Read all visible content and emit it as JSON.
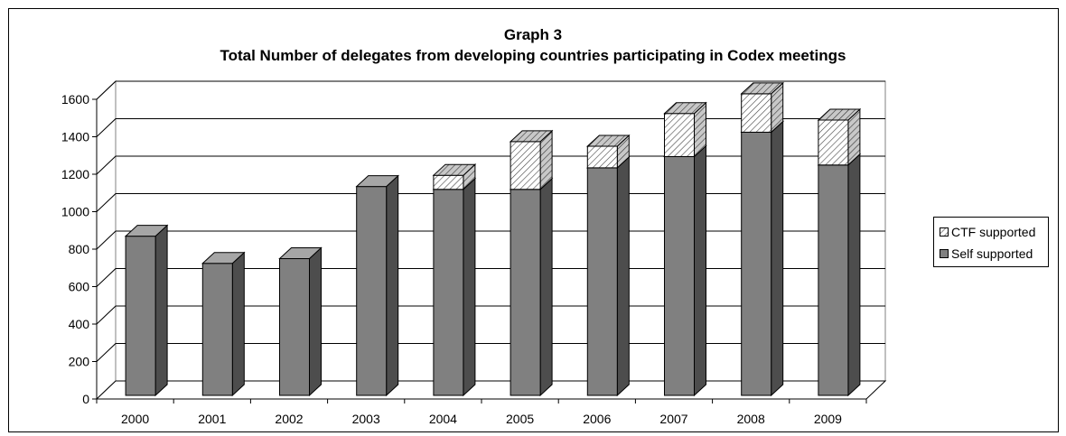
{
  "chart_data": {
    "type": "bar",
    "stacked": true,
    "three_d": true,
    "title": "Graph 3",
    "subtitle": "Total Number of delegates from developing countries participating in Codex meetings",
    "xlabel": "",
    "ylabel": "",
    "categories": [
      "2000",
      "2001",
      "2002",
      "2003",
      "2004",
      "2005",
      "2006",
      "2007",
      "2008",
      "2009"
    ],
    "series": [
      {
        "name": "Self supported",
        "values": [
          850,
          705,
          730,
          1115,
          1100,
          1100,
          1215,
          1275,
          1405,
          1230
        ],
        "color": "#808080",
        "pattern": "solid"
      },
      {
        "name": "CTF supported",
        "values": [
          0,
          0,
          0,
          0,
          75,
          255,
          115,
          230,
          205,
          240
        ],
        "color": "#ffffff",
        "pattern": "diagonal-hatch"
      }
    ],
    "ylim": [
      0,
      1600
    ],
    "yticks": [
      0,
      200,
      400,
      600,
      800,
      1000,
      1200,
      1400,
      1600
    ],
    "grid": true,
    "legend_position": "right"
  }
}
